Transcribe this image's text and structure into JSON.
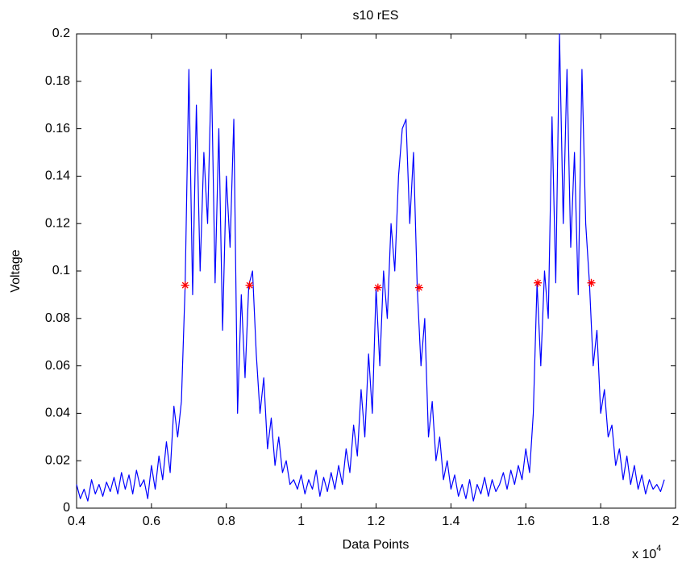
{
  "chart_data": {
    "type": "line",
    "title": "s10 rES",
    "x_label": "Data Points",
    "y_label": "Voltage",
    "x_multiplier": {
      "base": "x 10",
      "exponent": "4"
    },
    "xlim": [
      0.4,
      2
    ],
    "xticks": [
      0.4,
      0.6,
      0.8,
      1,
      1.2,
      1.4,
      1.6,
      1.8,
      2
    ],
    "ylim": [
      0,
      0.2
    ],
    "yticks": [
      0,
      0.02,
      0.04,
      0.06,
      0.08,
      0.1,
      0.12,
      0.14,
      0.16,
      0.18,
      0.2
    ],
    "grid": false,
    "box": true,
    "series": [
      {
        "color": "#0000ff",
        "marker": "none",
        "x": [
          0.4,
          0.41,
          0.42,
          0.43,
          0.44,
          0.45,
          0.46,
          0.47,
          0.48,
          0.49,
          0.5,
          0.51,
          0.52,
          0.53,
          0.54,
          0.55,
          0.56,
          0.57,
          0.58,
          0.59,
          0.6,
          0.61,
          0.62,
          0.63,
          0.64,
          0.65,
          0.66,
          0.67,
          0.68,
          0.69,
          0.7,
          0.71,
          0.72,
          0.73,
          0.74,
          0.75,
          0.76,
          0.77,
          0.78,
          0.79,
          0.8,
          0.81,
          0.82,
          0.83,
          0.84,
          0.85,
          0.86,
          0.87,
          0.88,
          0.89,
          0.9,
          0.91,
          0.92,
          0.93,
          0.94,
          0.95,
          0.96,
          0.97,
          0.98,
          0.99,
          1.0,
          1.01,
          1.02,
          1.03,
          1.04,
          1.05,
          1.06,
          1.07,
          1.08,
          1.09,
          1.1,
          1.11,
          1.12,
          1.13,
          1.14,
          1.15,
          1.16,
          1.17,
          1.18,
          1.19,
          1.2,
          1.21,
          1.22,
          1.23,
          1.24,
          1.25,
          1.26,
          1.27,
          1.28,
          1.29,
          1.3,
          1.31,
          1.32,
          1.33,
          1.34,
          1.35,
          1.36,
          1.37,
          1.38,
          1.39,
          1.4,
          1.41,
          1.42,
          1.43,
          1.44,
          1.45,
          1.46,
          1.47,
          1.48,
          1.49,
          1.5,
          1.51,
          1.52,
          1.53,
          1.54,
          1.55,
          1.56,
          1.57,
          1.58,
          1.59,
          1.6,
          1.61,
          1.62,
          1.63,
          1.64,
          1.65,
          1.66,
          1.67,
          1.68,
          1.69,
          1.7,
          1.71,
          1.72,
          1.73,
          1.74,
          1.75,
          1.76,
          1.77,
          1.78,
          1.79,
          1.8,
          1.81,
          1.82,
          1.83,
          1.84,
          1.85,
          1.86,
          1.87,
          1.88,
          1.89,
          1.9,
          1.91,
          1.92,
          1.93,
          1.94,
          1.95,
          1.96,
          1.97
        ],
        "values": [
          0.01,
          0.004,
          0.008,
          0.003,
          0.012,
          0.006,
          0.01,
          0.005,
          0.011,
          0.007,
          0.013,
          0.006,
          0.015,
          0.008,
          0.014,
          0.006,
          0.016,
          0.009,
          0.012,
          0.004,
          0.018,
          0.008,
          0.022,
          0.012,
          0.028,
          0.015,
          0.043,
          0.03,
          0.045,
          0.094,
          0.185,
          0.09,
          0.17,
          0.1,
          0.15,
          0.12,
          0.185,
          0.095,
          0.16,
          0.075,
          0.14,
          0.11,
          0.164,
          0.04,
          0.09,
          0.055,
          0.094,
          0.1,
          0.065,
          0.04,
          0.055,
          0.025,
          0.038,
          0.018,
          0.03,
          0.015,
          0.02,
          0.01,
          0.012,
          0.008,
          0.014,
          0.006,
          0.012,
          0.008,
          0.016,
          0.005,
          0.013,
          0.007,
          0.015,
          0.008,
          0.018,
          0.01,
          0.025,
          0.015,
          0.035,
          0.022,
          0.05,
          0.03,
          0.065,
          0.04,
          0.093,
          0.06,
          0.1,
          0.08,
          0.12,
          0.1,
          0.14,
          0.16,
          0.164,
          0.12,
          0.15,
          0.093,
          0.06,
          0.08,
          0.03,
          0.045,
          0.02,
          0.03,
          0.012,
          0.02,
          0.008,
          0.014,
          0.005,
          0.01,
          0.004,
          0.012,
          0.003,
          0.01,
          0.006,
          0.013,
          0.005,
          0.012,
          0.007,
          0.01,
          0.015,
          0.008,
          0.016,
          0.01,
          0.018,
          0.012,
          0.025,
          0.015,
          0.04,
          0.095,
          0.06,
          0.1,
          0.08,
          0.165,
          0.095,
          0.2,
          0.12,
          0.185,
          0.11,
          0.15,
          0.09,
          0.185,
          0.12,
          0.095,
          0.06,
          0.075,
          0.04,
          0.05,
          0.03,
          0.035,
          0.018,
          0.025,
          0.012,
          0.022,
          0.01,
          0.018,
          0.008,
          0.014,
          0.006,
          0.012,
          0.008,
          0.01,
          0.007,
          0.012
        ]
      },
      {
        "color": "#ff0000",
        "marker": "asterisk",
        "x": [
          0.69,
          0.862,
          1.205,
          1.315,
          1.632,
          1.775
        ],
        "values": [
          0.094,
          0.094,
          0.093,
          0.093,
          0.095,
          0.095
        ]
      }
    ]
  }
}
